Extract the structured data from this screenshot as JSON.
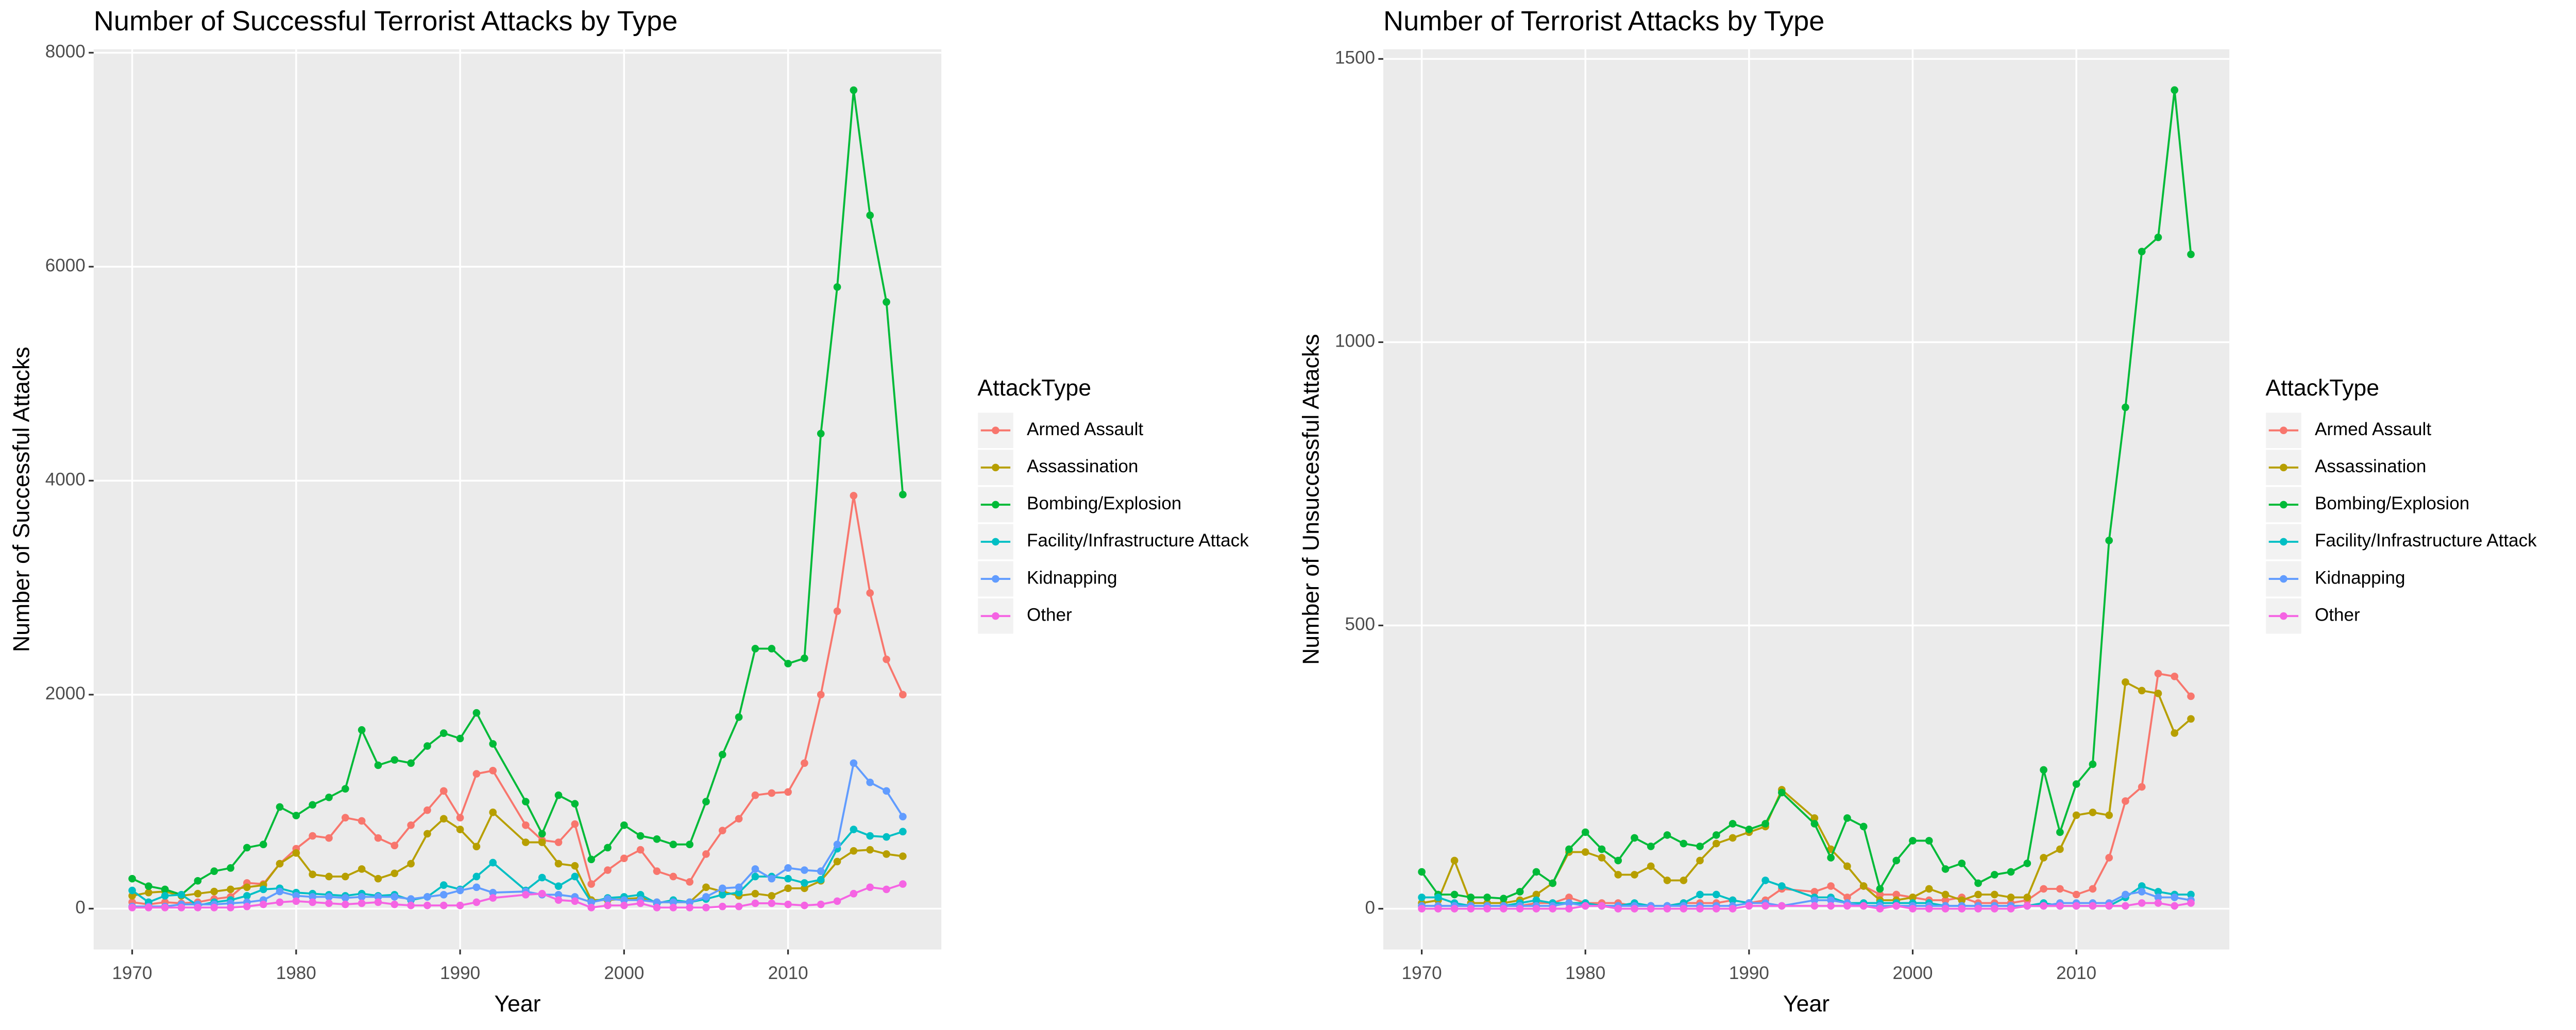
{
  "chart_data": [
    {
      "type": "line",
      "title": "Number of Successful Terrorist Attacks by Type",
      "x_label": "Year",
      "y_label": "Number of Successful Attacks",
      "legend_title": "AttackType",
      "legend": "right",
      "grid": true,
      "x": [
        1970,
        1971,
        1972,
        1973,
        1974,
        1975,
        1976,
        1977,
        1978,
        1979,
        1980,
        1981,
        1982,
        1983,
        1984,
        1985,
        1986,
        1987,
        1988,
        1989,
        1990,
        1991,
        1992,
        1994,
        1995,
        1996,
        1997,
        1998,
        1999,
        2000,
        2001,
        2002,
        2003,
        2004,
        2005,
        2006,
        2007,
        2008,
        2009,
        2010,
        2011,
        2012,
        2013,
        2014,
        2015,
        2016,
        2017
      ],
      "xlim": [
        1967.65,
        2019.35
      ],
      "xticks": [
        1970,
        1980,
        1990,
        2000,
        2010
      ],
      "ylim": [
        -382,
        8032
      ],
      "yticks": [
        0,
        2000,
        4000,
        6000,
        8000
      ],
      "series": [
        {
          "name": "Armed Assault",
          "color": "#F8766D",
          "values": [
            60,
            40,
            60,
            50,
            60,
            90,
            110,
            240,
            230,
            420,
            560,
            680,
            660,
            850,
            820,
            660,
            590,
            780,
            920,
            1100,
            850,
            1260,
            1290,
            780,
            640,
            620,
            790,
            230,
            360,
            470,
            550,
            350,
            300,
            250,
            510,
            730,
            840,
            1060,
            1080,
            1090,
            1360,
            2000,
            2780,
            3860,
            2950,
            2330,
            2000
          ]
        },
        {
          "name": "Assassination",
          "color": "#B79F00",
          "values": [
            120,
            150,
            160,
            120,
            140,
            160,
            180,
            200,
            220,
            420,
            520,
            320,
            300,
            300,
            370,
            280,
            330,
            420,
            700,
            840,
            740,
            580,
            900,
            620,
            620,
            420,
            400,
            80,
            80,
            90,
            100,
            60,
            60,
            60,
            200,
            160,
            120,
            140,
            120,
            190,
            190,
            260,
            440,
            540,
            550,
            510,
            490
          ]
        },
        {
          "name": "Bombing/Explosion",
          "color": "#00BA38",
          "values": [
            280,
            210,
            180,
            130,
            260,
            350,
            380,
            570,
            600,
            950,
            870,
            970,
            1040,
            1120,
            1670,
            1340,
            1390,
            1360,
            1520,
            1640,
            1590,
            1830,
            1540,
            1000,
            700,
            1060,
            980,
            460,
            570,
            780,
            680,
            650,
            600,
            600,
            1000,
            1440,
            1790,
            2430,
            2430,
            2290,
            2340,
            4440,
            5810,
            7650,
            6480,
            5670,
            3870
          ]
        },
        {
          "name": "Facility/Infrastructure Attack",
          "color": "#00BFC4",
          "values": [
            170,
            60,
            120,
            130,
            30,
            60,
            80,
            120,
            180,
            190,
            150,
            140,
            130,
            120,
            140,
            120,
            130,
            80,
            110,
            220,
            180,
            300,
            430,
            170,
            290,
            210,
            300,
            60,
            100,
            110,
            130,
            50,
            80,
            60,
            90,
            130,
            150,
            300,
            300,
            280,
            240,
            270,
            560,
            740,
            680,
            670,
            720
          ]
        },
        {
          "name": "Kidnapping",
          "color": "#619CFF",
          "values": [
            20,
            20,
            20,
            40,
            40,
            40,
            50,
            60,
            80,
            160,
            120,
            110,
            110,
            100,
            110,
            110,
            110,
            90,
            110,
            130,
            170,
            200,
            150,
            160,
            130,
            130,
            110,
            60,
            90,
            80,
            80,
            60,
            60,
            60,
            110,
            190,
            200,
            370,
            280,
            380,
            360,
            350,
            600,
            1360,
            1180,
            1100,
            860
          ]
        },
        {
          "name": "Other",
          "color": "#F564E3",
          "values": [
            10,
            10,
            10,
            10,
            10,
            10,
            10,
            20,
            40,
            60,
            70,
            60,
            50,
            40,
            50,
            60,
            40,
            30,
            30,
            30,
            30,
            60,
            100,
            130,
            140,
            80,
            70,
            10,
            30,
            30,
            50,
            10,
            10,
            10,
            10,
            20,
            20,
            50,
            50,
            40,
            30,
            40,
            70,
            140,
            200,
            180,
            230
          ]
        }
      ]
    },
    {
      "type": "line",
      "title": "Number of Terrorist Attacks by Type",
      "x_label": "Year",
      "y_label": "Number of Unsuccessful Attacks",
      "legend_title": "AttackType",
      "legend": "right",
      "grid": true,
      "x": [
        1970,
        1971,
        1972,
        1973,
        1974,
        1975,
        1976,
        1977,
        1978,
        1979,
        1980,
        1981,
        1982,
        1983,
        1984,
        1985,
        1986,
        1987,
        1988,
        1989,
        1990,
        1991,
        1992,
        1994,
        1995,
        1996,
        1997,
        1998,
        1999,
        2000,
        2001,
        2002,
        2003,
        2004,
        2005,
        2006,
        2007,
        2008,
        2009,
        2010,
        2011,
        2012,
        2013,
        2014,
        2015,
        2016,
        2017
      ],
      "xlim": [
        1967.65,
        2019.35
      ],
      "xticks": [
        1970,
        1980,
        1990,
        2000,
        2010
      ],
      "ylim": [
        -72,
        1517
      ],
      "yticks": [
        0,
        500,
        1000,
        1500
      ],
      "series": [
        {
          "name": "Armed Assault",
          "color": "#F8766D",
          "values": [
            5,
            5,
            5,
            5,
            5,
            5,
            5,
            10,
            10,
            20,
            10,
            10,
            10,
            5,
            5,
            5,
            10,
            10,
            10,
            15,
            10,
            15,
            35,
            30,
            40,
            20,
            40,
            25,
            25,
            20,
            15,
            15,
            20,
            10,
            10,
            10,
            15,
            35,
            35,
            25,
            35,
            90,
            190,
            215,
            415,
            410,
            375
          ]
        },
        {
          "name": "Assassination",
          "color": "#B79F00",
          "values": [
            10,
            15,
            85,
            10,
            10,
            10,
            15,
            25,
            45,
            100,
            100,
            90,
            60,
            60,
            75,
            50,
            50,
            85,
            115,
            125,
            135,
            145,
            210,
            160,
            105,
            75,
            40,
            15,
            15,
            20,
            35,
            25,
            15,
            25,
            25,
            20,
            20,
            90,
            105,
            165,
            170,
            165,
            400,
            385,
            380,
            310,
            335
          ]
        },
        {
          "name": "Bombing/Explosion",
          "color": "#00BA38",
          "values": [
            65,
            25,
            25,
            20,
            20,
            18,
            30,
            65,
            45,
            105,
            135,
            105,
            85,
            125,
            110,
            130,
            115,
            110,
            130,
            150,
            140,
            150,
            205,
            150,
            90,
            160,
            145,
            35,
            85,
            120,
            120,
            70,
            80,
            45,
            60,
            65,
            80,
            245,
            135,
            220,
            255,
            650,
            885,
            1160,
            1185,
            1445,
            1155
          ]
        },
        {
          "name": "Facility/Infrastructure Attack",
          "color": "#00BFC4",
          "values": [
            20,
            20,
            10,
            5,
            5,
            5,
            10,
            15,
            10,
            10,
            10,
            5,
            5,
            10,
            5,
            5,
            10,
            25,
            25,
            15,
            10,
            50,
            40,
            20,
            20,
            10,
            10,
            10,
            10,
            10,
            10,
            5,
            5,
            5,
            5,
            5,
            5,
            10,
            5,
            5,
            5,
            5,
            20,
            40,
            30,
            25,
            25
          ]
        },
        {
          "name": "Kidnapping",
          "color": "#619CFF",
          "values": [
            5,
            5,
            5,
            5,
            5,
            5,
            5,
            5,
            5,
            10,
            5,
            5,
            5,
            5,
            5,
            5,
            5,
            5,
            5,
            5,
            10,
            10,
            5,
            15,
            15,
            10,
            5,
            5,
            5,
            5,
            5,
            5,
            5,
            5,
            5,
            5,
            5,
            5,
            10,
            10,
            10,
            10,
            25,
            30,
            20,
            20,
            15
          ]
        },
        {
          "name": "Other",
          "color": "#F564E3",
          "values": [
            0,
            0,
            0,
            0,
            0,
            0,
            0,
            0,
            0,
            0,
            5,
            5,
            0,
            0,
            0,
            0,
            0,
            0,
            0,
            0,
            5,
            5,
            5,
            5,
            5,
            5,
            5,
            0,
            5,
            0,
            0,
            0,
            0,
            0,
            0,
            0,
            5,
            5,
            5,
            5,
            5,
            5,
            5,
            10,
            10,
            5,
            10
          ]
        }
      ]
    }
  ]
}
